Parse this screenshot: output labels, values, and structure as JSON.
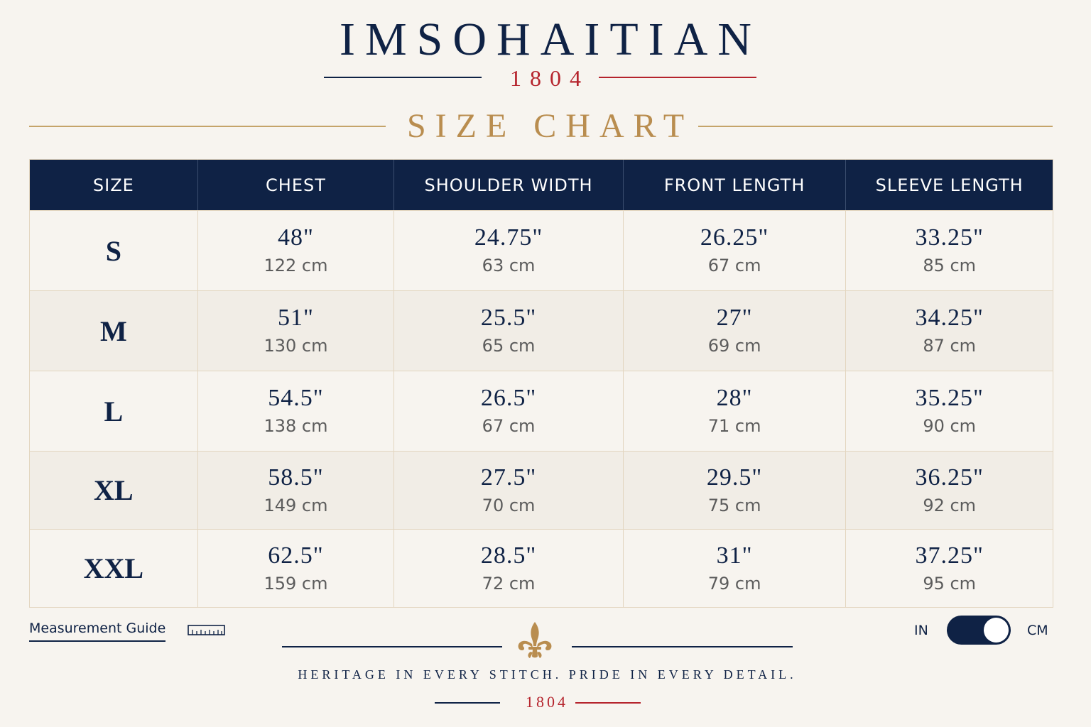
{
  "brand": {
    "name": "IMSOHAITIAN",
    "year": "1804"
  },
  "title": "SIZE CHART",
  "table": {
    "headers": [
      "SIZE",
      "CHEST",
      "SHOULDER WIDTH",
      "FRONT LENGTH",
      "SLEEVE LENGTH"
    ],
    "rows": [
      {
        "size": "S",
        "values": [
          {
            "in": "48\"",
            "cm": "122 cm"
          },
          {
            "in": "24.75\"",
            "cm": "63 cm"
          },
          {
            "in": "26.25\"",
            "cm": "67 cm"
          },
          {
            "in": "33.25\"",
            "cm": "85 cm"
          }
        ]
      },
      {
        "size": "M",
        "values": [
          {
            "in": "51\"",
            "cm": "130 cm"
          },
          {
            "in": "25.5\"",
            "cm": "65 cm"
          },
          {
            "in": "27\"",
            "cm": "69 cm"
          },
          {
            "in": "34.25\"",
            "cm": "87 cm"
          }
        ]
      },
      {
        "size": "L",
        "values": [
          {
            "in": "54.5\"",
            "cm": "138 cm"
          },
          {
            "in": "26.5\"",
            "cm": "67 cm"
          },
          {
            "in": "28\"",
            "cm": "71 cm"
          },
          {
            "in": "35.25\"",
            "cm": "90 cm"
          }
        ]
      },
      {
        "size": "XL",
        "values": [
          {
            "in": "58.5\"",
            "cm": "149 cm"
          },
          {
            "in": "27.5\"",
            "cm": "70 cm"
          },
          {
            "in": "29.5\"",
            "cm": "75 cm"
          },
          {
            "in": "36.25\"",
            "cm": "92 cm"
          }
        ]
      },
      {
        "size": "XXL",
        "values": [
          {
            "in": "62.5\"",
            "cm": "159 cm"
          },
          {
            "in": "28.5\"",
            "cm": "72 cm"
          },
          {
            "in": "31\"",
            "cm": "79 cm"
          },
          {
            "in": "37.25\"",
            "cm": "95 cm"
          }
        ]
      }
    ]
  },
  "footer": {
    "measurement_guide_label": "Measurement Guide",
    "measurement_guide_icon": "ruler-icon",
    "divider_icon": "fleur-de-lis-icon",
    "tagline": "HERITAGE IN EVERY STITCH. PRIDE IN EVERY DETAIL.",
    "year": "1804"
  },
  "unit_toggle": {
    "left_label": "IN",
    "right_label": "CM",
    "selected": "CM"
  },
  "colors": {
    "navy": "#0f2245",
    "red": "#b5232c",
    "gold": "#b98d4f",
    "background": "#f7f4ef"
  }
}
